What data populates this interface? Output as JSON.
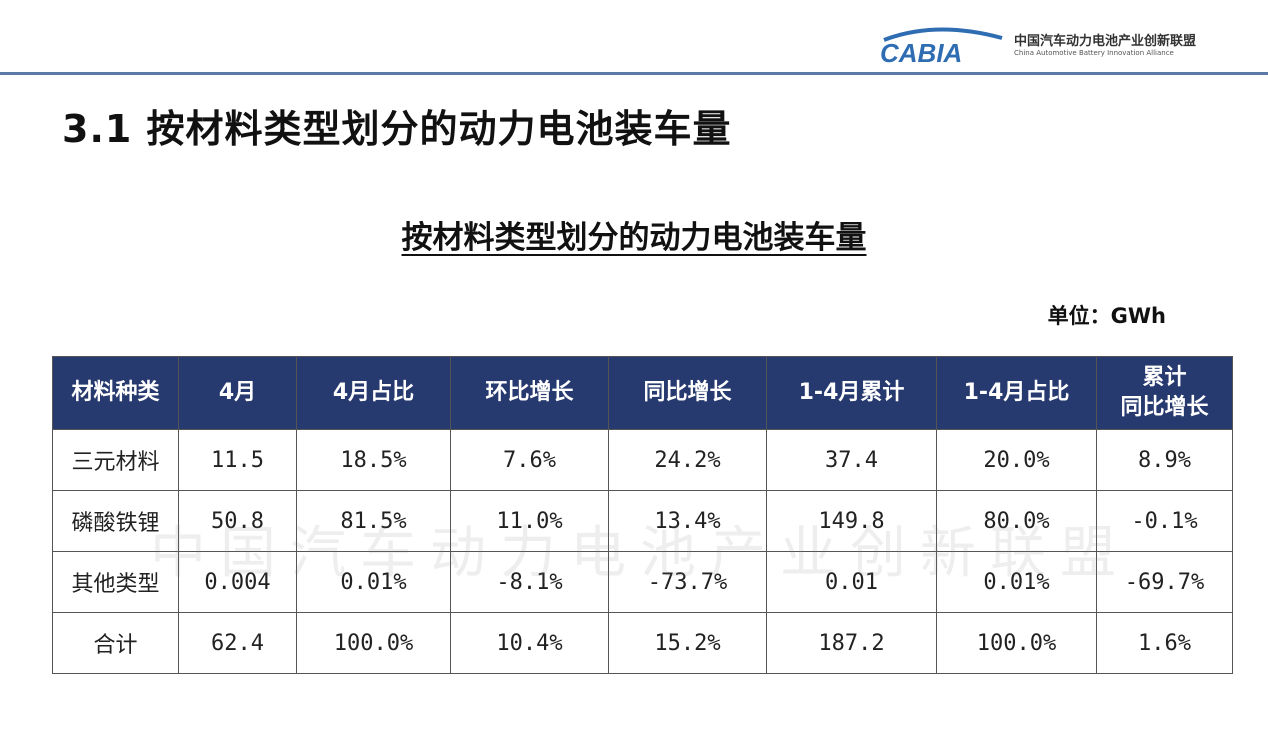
{
  "logo": {
    "mark_text": "CABIA",
    "cn_name": "中国汽车动力电池产业创新联盟",
    "en_name": "China Automotive Battery Innovation Alliance"
  },
  "section_title": "3.1  按材料类型划分的动力电池装车量",
  "table_title": "按材料类型划分的动力电池装车量",
  "unit_label": "单位：GWh",
  "table": {
    "headers": [
      "材料种类",
      "4月",
      "4月占比",
      "环比增长",
      "同比增长",
      "1-4月累计",
      "1-4月占比",
      "累计\n同比增长"
    ],
    "rows": [
      [
        "三元材料",
        "11.5",
        "18.5%",
        "7.6%",
        "24.2%",
        "37.4",
        "20.0%",
        "8.9%"
      ],
      [
        "磷酸铁锂",
        "50.8",
        "81.5%",
        "11.0%",
        "13.4%",
        "149.8",
        "80.0%",
        "-0.1%"
      ],
      [
        "其他类型",
        "0.004",
        "0.01%",
        "-8.1%",
        "-73.7%",
        "0.01",
        "0.01%",
        "-69.7%"
      ],
      [
        "合计",
        "62.4",
        "100.0%",
        "10.4%",
        "15.2%",
        "187.2",
        "100.0%",
        "1.6%"
      ]
    ]
  },
  "watermark": "中国汽车动力电池产业创新联盟",
  "colors": {
    "header_bg": "#273a6f",
    "rule": "#5b7aa6",
    "logo_blue": "#2f6db3"
  }
}
